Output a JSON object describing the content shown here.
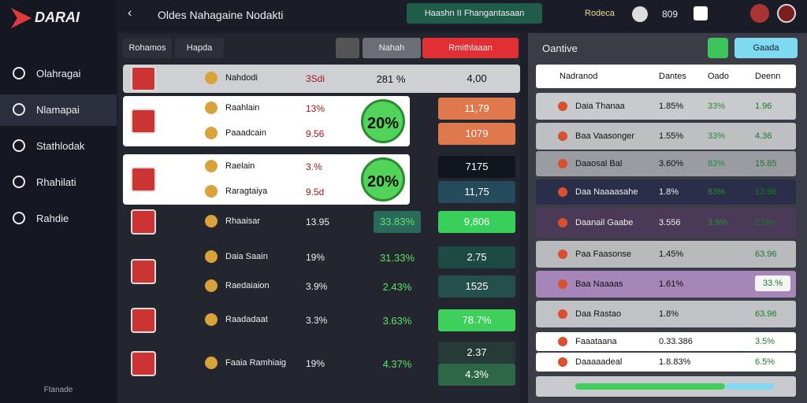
{
  "header": {
    "logo": "DARAI",
    "title": "Oldes Nahagaine Nodakti",
    "banner": "Haashn II Fhangantasaan",
    "right_label": "Rodeca",
    "counter": "809"
  },
  "sidebar": {
    "items": [
      "Olahragai",
      "Nlamapai",
      "Stathlodak",
      "Rhahilati",
      "Rahdie"
    ],
    "footer": "Ftanade"
  },
  "matches": {
    "tabs": [
      "Rohamos",
      "Hapda"
    ],
    "buttons": [
      "Nahah",
      "Rmithlaaan"
    ],
    "rows": [
      {
        "lines": [
          {
            "team": "Nahdodi",
            "pct": "3Sdi",
            "value": "281 %"
          }
        ],
        "badge": null,
        "odds": [
          "4,00"
        ]
      },
      {
        "lines": [
          {
            "team": "Raahlain",
            "pct": "13%",
            "value": ""
          },
          {
            "team": "Paaadcain",
            "pct": "9.56",
            "value": ""
          }
        ],
        "badge": "20%",
        "odds": [
          "11,79",
          "1079"
        ]
      },
      {
        "lines": [
          {
            "team": "Raelain",
            "pct": "3.%",
            "value": ""
          },
          {
            "team": "Raragtaiya",
            "pct": "9.5d",
            "value": ""
          }
        ],
        "badge": "20%",
        "odds": [
          "7175",
          "11,75"
        ]
      },
      {
        "lines": [
          {
            "team": "Rhaaisar",
            "pct": "13.95",
            "value": "33.83%"
          }
        ],
        "badge": null,
        "odds": [
          "9,806"
        ]
      },
      {
        "lines": [
          {
            "team": "Daia Saain",
            "pct": "19%",
            "value": "31.33%"
          },
          {
            "team": "Raedaiaion",
            "pct": "3.9%",
            "value": "2.43%"
          }
        ],
        "badge": null,
        "odds": [
          "2.75",
          "1525"
        ]
      },
      {
        "lines": [
          {
            "team": "Raadadaat",
            "pct": "3.3%",
            "value": "3.63%"
          }
        ],
        "badge": null,
        "odds": [
          "78.7%"
        ]
      },
      {
        "lines": [
          {
            "team": "Faaia Ramhiaig",
            "pct": "19%",
            "value": "4.37%"
          }
        ],
        "badge": null,
        "odds": [
          "2.37",
          "4.3%"
        ]
      }
    ]
  },
  "standings": {
    "title": "Oantive",
    "button": "Gaada",
    "columns": [
      "Nadranod",
      "Dantes",
      "Oado",
      "Deenn"
    ],
    "rows": [
      [
        "Daia Thanaa",
        "1.85%",
        "33%",
        "1.96"
      ],
      [
        "Baa Vaasonger",
        "1.55%",
        "33%",
        "4.36"
      ],
      [
        "Daaosal Bal",
        "3.60%",
        "83%",
        "15.85"
      ],
      [
        "Daa Naaaasahe",
        "1.8%",
        "83%",
        "13.96"
      ],
      [
        "Daanail Gaabe",
        "3.556",
        "3.9%",
        "2.0%"
      ],
      [
        "Paa Faasonse",
        "1.45%",
        "",
        "63.96"
      ],
      [
        "Baa Naaaas",
        "1.61%",
        "",
        "33.%"
      ],
      [
        "Daa Rastao",
        "1.8%",
        "",
        "63.96"
      ],
      [
        "Faaataana",
        "0.33.386",
        "",
        "3.5%"
      ],
      [
        "Daaaaadeal",
        "1.8.83%",
        "",
        "6.5%"
      ]
    ]
  }
}
